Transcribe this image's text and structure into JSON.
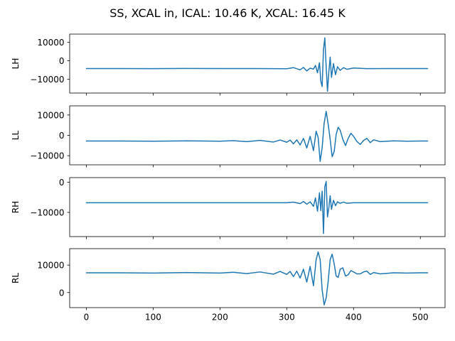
{
  "chart_data": {
    "type": "line",
    "title": "SS, XCAL in, ICAL: 10.46 K, XCAL: 16.45 K",
    "xlim": [
      -25,
      537
    ],
    "xticks": [
      0,
      100,
      200,
      300,
      400,
      500
    ],
    "line_color": "#1f77b4",
    "subplots": [
      {
        "ylabel": "LH",
        "ylim": [
          -17500,
          14500
        ],
        "yticks": [
          10000,
          0,
          -10000
        ],
        "ytick_labels": [
          "10000",
          "0",
          "−10000"
        ],
        "series": [
          {
            "x": [
              0,
              50,
              100,
              150,
              200,
              250,
              300,
              310,
              320,
              325,
              330,
              335,
              340,
              343,
              346,
              349,
              351,
              353,
              355,
              357,
              359,
              361,
              363,
              365,
              367,
              370,
              373,
              376,
              380,
              385,
              390,
              400,
              420,
              450,
              500,
              511
            ],
            "y": [
              -4200,
              -4200,
              -4250,
              -4150,
              -4200,
              -4200,
              -4300,
              -3700,
              -4900,
              -3600,
              -5500,
              -4000,
              -4500,
              -2500,
              -6500,
              -1000,
              -11000,
              -14000,
              6000,
              12500,
              -3000,
              -16500,
              -6000,
              2000,
              -9000,
              -1500,
              -7500,
              -3200,
              -5200,
              -3700,
              -4600,
              -3900,
              -4250,
              -4200,
              -4200,
              -4200
            ]
          }
        ]
      },
      {
        "ylabel": "LL",
        "ylim": [
          -14500,
          14500
        ],
        "yticks": [
          10000,
          0,
          -10000
        ],
        "ytick_labels": [
          "10000",
          "0",
          "−10000"
        ],
        "series": [
          {
            "x": [
              0,
              50,
              100,
              150,
              200,
              220,
              240,
              260,
              280,
              290,
              300,
              305,
              310,
              315,
              320,
              325,
              330,
              335,
              340,
              344,
              347,
              350,
              353,
              356,
              359,
              362,
              365,
              368,
              371,
              374,
              377,
              380,
              384,
              388,
              392,
              396,
              400,
              405,
              410,
              415,
              420,
              425,
              430,
              440,
              460,
              480,
              500,
              511
            ],
            "y": [
              -2800,
              -2800,
              -2900,
              -2700,
              -2900,
              -2600,
              -3100,
              -2500,
              -3300,
              -2300,
              -3400,
              -2300,
              -4200,
              -2200,
              -4700,
              -1500,
              -6200,
              -500,
              -7500,
              2000,
              -1000,
              -12800,
              -6000,
              6000,
              11800,
              5500,
              -2000,
              -10500,
              -8000,
              500,
              4000,
              2500,
              -2000,
              -5000,
              -1500,
              1000,
              -500,
              -3000,
              -4500,
              -2500,
              -1500,
              -3600,
              -2200,
              -3100,
              -2700,
              -2900,
              -2800,
              -2800
            ]
          }
        ]
      },
      {
        "ylabel": "RH",
        "ylim": [
          -18000,
          1500
        ],
        "yticks": [
          0,
          -10000
        ],
        "ytick_labels": [
          "0",
          "−10000"
        ],
        "series": [
          {
            "x": [
              0,
              50,
              100,
              150,
              200,
              250,
              300,
              310,
              320,
              325,
              330,
              335,
              340,
              343,
              346,
              349,
              351,
              353,
              355,
              357,
              359,
              361,
              363,
              365,
              367,
              370,
              373,
              376,
              380,
              385,
              390,
              400,
              420,
              450,
              500,
              511
            ],
            "y": [
              -6800,
              -6800,
              -6800,
              -6800,
              -6800,
              -6800,
              -6800,
              -6600,
              -7100,
              -6400,
              -7300,
              -6500,
              -8000,
              -5200,
              -9600,
              -3500,
              -9400,
              -3000,
              -17000,
              -1500,
              200,
              -11500,
              -8500,
              -4500,
              -9000,
              -6000,
              -7800,
              -6500,
              -7000,
              -6600,
              -7000,
              -6800,
              -6800,
              -6800,
              -6800,
              -6800
            ]
          }
        ]
      },
      {
        "ylabel": "RL",
        "ylim": [
          -5500,
          16000
        ],
        "yticks": [
          10000,
          0
        ],
        "ytick_labels": [
          "10000",
          "0"
        ],
        "series": [
          {
            "x": [
              0,
              50,
              100,
              150,
              200,
              220,
              240,
              260,
              280,
              290,
              300,
              305,
              310,
              315,
              320,
              325,
              330,
              335,
              340,
              344,
              347,
              350,
              353,
              356,
              359,
              362,
              365,
              368,
              371,
              374,
              377,
              380,
              384,
              388,
              392,
              396,
              400,
              405,
              410,
              415,
              420,
              425,
              430,
              440,
              460,
              480,
              500,
              511
            ],
            "y": [
              7200,
              7200,
              7100,
              7300,
              7100,
              7400,
              6900,
              7500,
              6700,
              7700,
              6600,
              7700,
              5800,
              7800,
              5300,
              8500,
              3800,
              9500,
              2500,
              12000,
              14800,
              12000,
              1000,
              -4500,
              -2000,
              4000,
              12000,
              14000,
              10500,
              6000,
              5500,
              8500,
              9000,
              6000,
              6500,
              8000,
              7500,
              6800,
              6800,
              7500,
              7800,
              6600,
              7300,
              6800,
              7200,
              7100,
              7200,
              7200
            ]
          }
        ]
      }
    ]
  }
}
